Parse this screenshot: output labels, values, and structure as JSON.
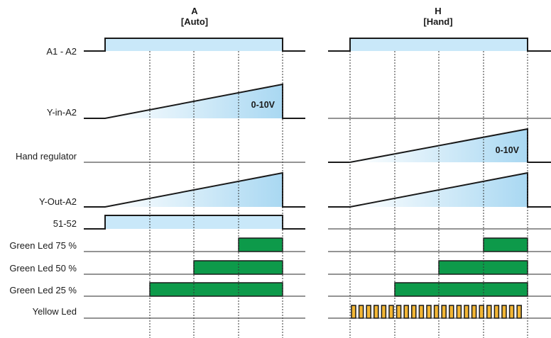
{
  "columns": [
    {
      "id": "auto",
      "title": "A",
      "subtitle": "[Auto]"
    },
    {
      "id": "hand",
      "title": "H",
      "subtitle": "[Hand]"
    }
  ],
  "signals": [
    {
      "id": "a1a2",
      "label": "A1 - A2"
    },
    {
      "id": "yin",
      "label": "Y-in-A2"
    },
    {
      "id": "handreg",
      "label": "Hand regulator"
    },
    {
      "id": "yout",
      "label": "Y-Out-A2"
    },
    {
      "id": "s5152",
      "label": "51-52"
    },
    {
      "id": "g75",
      "label": "Green Led 75 %"
    },
    {
      "id": "g50",
      "label": "Green Led 50 %"
    },
    {
      "id": "g25",
      "label": "Green Led 25 %"
    },
    {
      "id": "yled",
      "label": "Yellow Led"
    }
  ],
  "ramp_label": "0-10V",
  "colors": {
    "ramp_fill_start": "#a9d8f2",
    "ramp_fill_end": "#ffffff",
    "block_fill": "#c9e8f9",
    "green_led": "#0d9a4a",
    "yellow_led": "#f2b634",
    "line": "#1a1a1a"
  }
}
